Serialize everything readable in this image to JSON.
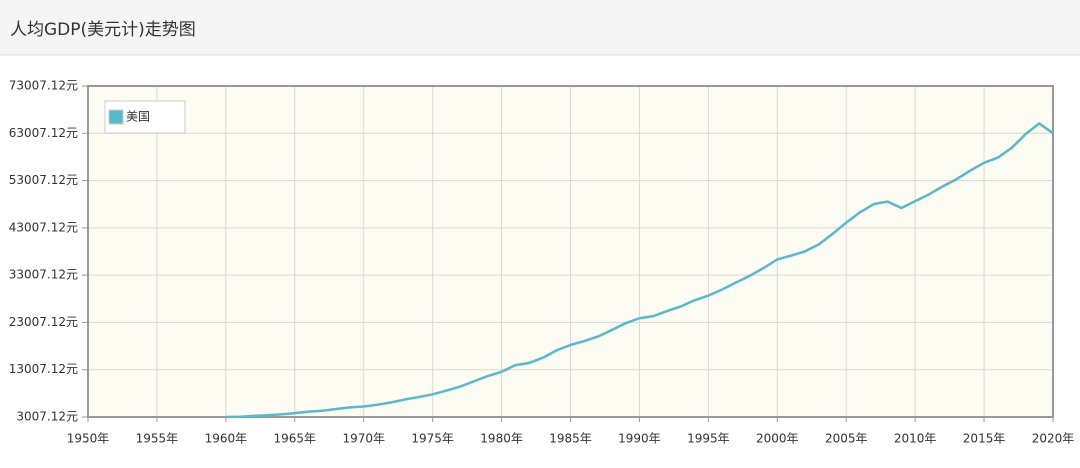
{
  "chart_data": {
    "type": "line",
    "title": "人均GDP(美元计)走势图",
    "x": [
      1960,
      1961,
      1962,
      1963,
      1964,
      1965,
      1966,
      1967,
      1968,
      1969,
      1970,
      1971,
      1972,
      1973,
      1974,
      1975,
      1976,
      1977,
      1978,
      1979,
      1980,
      1981,
      1982,
      1983,
      1984,
      1985,
      1986,
      1987,
      1988,
      1989,
      1990,
      1991,
      1992,
      1993,
      1994,
      1995,
      1996,
      1997,
      1998,
      1999,
      2000,
      2001,
      2002,
      2003,
      2004,
      2005,
      2006,
      2007,
      2008,
      2009,
      2010,
      2011,
      2012,
      2013,
      2014,
      2015,
      2016,
      2017,
      2018,
      2019,
      2020
    ],
    "series": [
      {
        "name": "美国",
        "color": "#5ab8cc",
        "values": [
          3007,
          3067,
          3244,
          3375,
          3574,
          3828,
          4146,
          4336,
          4696,
          5032,
          5234,
          5609,
          6094,
          6726,
          7226,
          7801,
          8592,
          9453,
          10565,
          11674,
          12575,
          13976,
          14434,
          15544,
          17121,
          18237,
          19071,
          20039,
          21417,
          22857,
          23889,
          24342,
          25419,
          26387,
          27695,
          28691,
          29968,
          31459,
          32854,
          34516,
          36330,
          37134,
          38023,
          39496,
          41713,
          44115,
          46299,
          48050,
          48570,
          47195,
          48651,
          50066,
          51784,
          53291,
          55124,
          56763,
          57867,
          59915,
          62805,
          65095,
          63028
        ]
      }
    ],
    "xlim": [
      1950,
      2020
    ],
    "xticks": [
      {
        "value": 1950,
        "label": "1950年"
      },
      {
        "value": 1955,
        "label": "1955年"
      },
      {
        "value": 1960,
        "label": "1960年"
      },
      {
        "value": 1965,
        "label": "1965年"
      },
      {
        "value": 1970,
        "label": "1970年"
      },
      {
        "value": 1975,
        "label": "1975年"
      },
      {
        "value": 1980,
        "label": "1980年"
      },
      {
        "value": 1985,
        "label": "1985年"
      },
      {
        "value": 1990,
        "label": "1990年"
      },
      {
        "value": 1995,
        "label": "1995年"
      },
      {
        "value": 2000,
        "label": "2000年"
      },
      {
        "value": 2005,
        "label": "2005年"
      },
      {
        "value": 2010,
        "label": "2010年"
      },
      {
        "value": 2015,
        "label": "2015年"
      },
      {
        "value": 2020,
        "label": "2020年"
      }
    ],
    "ylim": [
      3007.12,
      73007.12
    ],
    "yticks": [
      {
        "value": 3007.12,
        "label": "3007.12元"
      },
      {
        "value": 13007.12,
        "label": "13007.12元"
      },
      {
        "value": 23007.12,
        "label": "23007.12元"
      },
      {
        "value": 33007.12,
        "label": "33007.12元"
      },
      {
        "value": 43007.12,
        "label": "43007.12元"
      },
      {
        "value": 53007.12,
        "label": "53007.12元"
      },
      {
        "value": 63007.12,
        "label": "63007.12元"
      },
      {
        "value": 73007.12,
        "label": "73007.12元"
      }
    ],
    "grid": true,
    "legend": "top-left"
  }
}
